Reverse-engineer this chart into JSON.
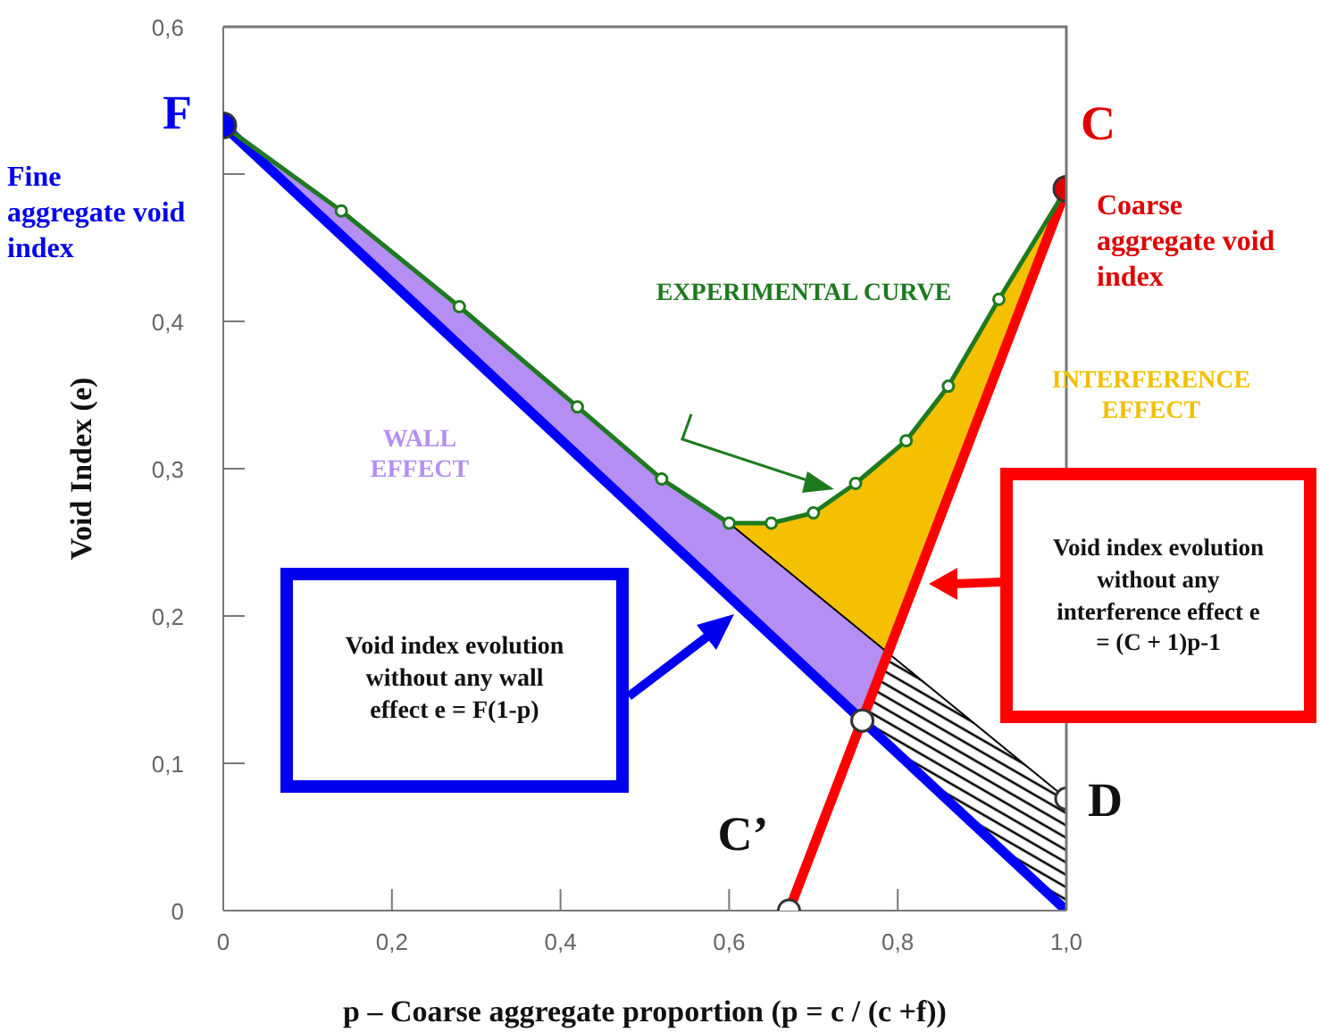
{
  "chart_data": {
    "type": "line",
    "xlabel": "p – Coarse aggregate proportion (p = c / (c +f))",
    "ylabel": "Void Index  (e)",
    "xlim": [
      0,
      1
    ],
    "ylim": [
      0,
      0.6
    ],
    "xticks": [
      0,
      {
        "value": 0.2,
        "label": "0,2"
      },
      {
        "value": 0.4,
        "label": "0,4"
      },
      {
        "value": 0.6,
        "label": "0,6"
      },
      {
        "value": 0.8,
        "label": "0,8"
      },
      {
        "value": 1,
        "label": "1,0"
      }
    ],
    "yticks": [
      0,
      {
        "value": 0.1,
        "label": "0,1"
      },
      {
        "value": 0.2,
        "label": "0,2"
      },
      {
        "value": 0.3,
        "label": "0,3"
      },
      {
        "value": 0.4,
        "label": "0,4"
      },
      {
        "value": 0.5,
        "label": null
      },
      {
        "value": 0.6,
        "label": "0,6"
      }
    ],
    "series": [
      {
        "color": "#000000",
        "x": [
          0.6,
          1
        ],
        "values": [
          0.263,
          0.076
        ]
      },
      {
        "color": "#0000ff",
        "x": [
          0,
          1
        ],
        "values": [
          0.533,
          0
        ]
      },
      {
        "color": "#ff0000",
        "x": [
          0.671,
          1
        ],
        "values": [
          0,
          0.49
        ]
      },
      {
        "name": "EXPERIMENTAL CURVE",
        "color": "#1e7a1e",
        "marker": "circle",
        "x": [
          0,
          0.14,
          0.28,
          0.42,
          0.52,
          0.6,
          0.65,
          0.7,
          0.75,
          0.81,
          0.86,
          0.92,
          1
        ],
        "values": [
          0.533,
          0.475,
          0.41,
          0.342,
          0.293,
          0.263,
          0.263,
          0.27,
          0.29,
          0.319,
          0.356,
          0.415,
          0.49
        ]
      },
      {
        "type": "scatter",
        "colors": [
          "#0000ff",
          "#e00000",
          "#ffffff",
          "#ffffff",
          "#ffffff"
        ],
        "x": [
          0,
          1,
          0.671,
          1,
          0.758
        ],
        "values": [
          0.533,
          0.49,
          0,
          0.076,
          0.129
        ]
      }
    ],
    "annotations": [
      {
        "text": "F",
        "x": 0,
        "y": 0.533
      },
      "Fine aggregate void index",
      {
        "text": "C",
        "x": 1,
        "y": 0.49
      },
      "Coarse aggregate void index",
      {
        "text": "C’",
        "x": 0.671,
        "y": 0
      },
      {
        "text": "D",
        "x": 1,
        "y": 0.076
      },
      "Void index evolution without any wall effect e = F(1-p)",
      "Void index evolution without any interference effect e = (C + 1)p-1",
      "WALL EFFECT",
      "INTERFERENCE EFFECT"
    ]
  }
}
